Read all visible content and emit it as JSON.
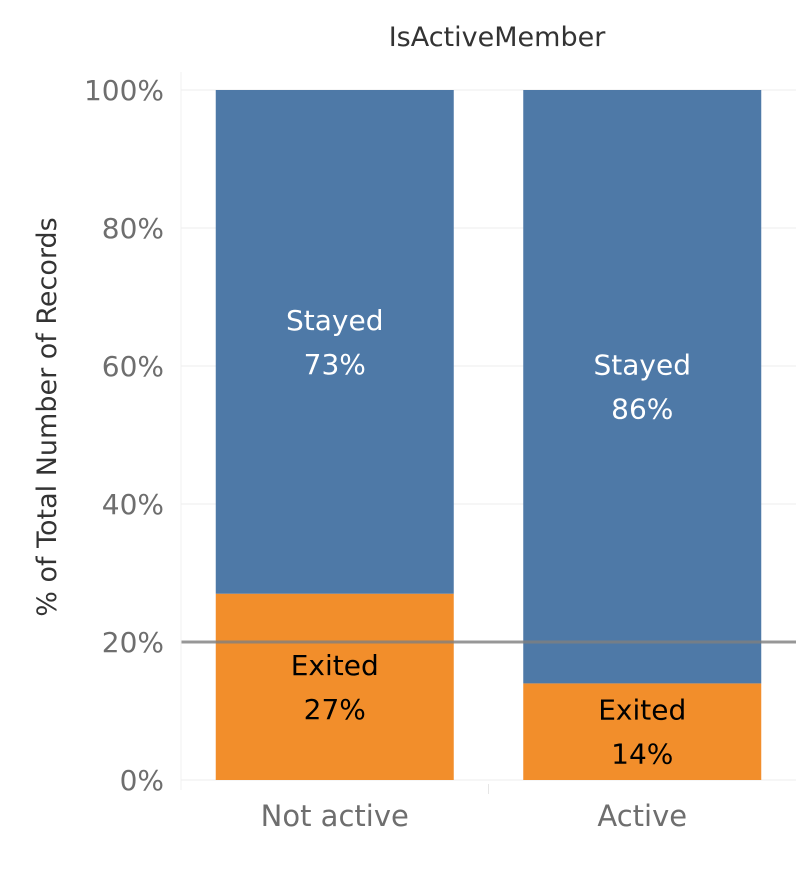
{
  "chart_data": {
    "type": "bar",
    "stacked": true,
    "normalized": true,
    "column_header": "IsActiveMember",
    "ylabel": "% of Total Number of Records",
    "ylim": [
      0,
      100
    ],
    "y_ticks": [
      "0%",
      "20%",
      "40%",
      "60%",
      "80%",
      "100%"
    ],
    "categories": [
      "Not active",
      "Active"
    ],
    "series": [
      {
        "name": "Exited",
        "values": [
          27,
          14
        ],
        "labels": [
          "27%",
          "14%"
        ],
        "color": "#f28e2b",
        "label_color": "#000000"
      },
      {
        "name": "Stayed",
        "values": [
          73,
          86
        ],
        "labels": [
          "73%",
          "86%"
        ],
        "color": "#4e79a7",
        "label_color": "#ffffff"
      }
    ],
    "reference_line": {
      "value": 20,
      "color": "#7f7f7f"
    },
    "grid": true,
    "legend": "none"
  }
}
